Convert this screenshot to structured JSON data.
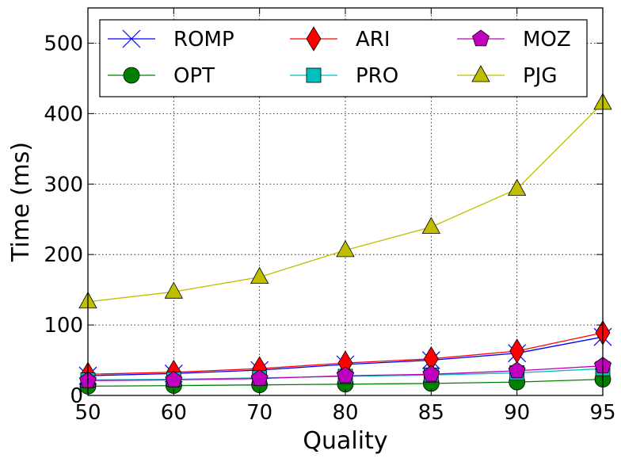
{
  "chart_data": {
    "type": "line",
    "title": "",
    "xlabel": "Quality",
    "ylabel": "Time (ms)",
    "categories": [
      "50",
      "60",
      "70",
      "80",
      "85",
      "90",
      "95"
    ],
    "ylim": [
      0,
      550
    ],
    "yticks": [
      "0",
      "100",
      "200",
      "300",
      "400",
      "500"
    ],
    "grid": true,
    "legend_position": "top",
    "series": [
      {
        "name": "ROMP",
        "marker": "x",
        "color": "#0000ff",
        "values": [
          28,
          31,
          36,
          44,
          50,
          60,
          83
        ]
      },
      {
        "name": "OPT",
        "marker": "circle",
        "color": "#008000",
        "values": [
          13,
          14,
          15,
          16,
          17,
          19,
          23
        ]
      },
      {
        "name": "ARI",
        "marker": "diamond",
        "color": "#ff0000",
        "values": [
          30,
          33,
          38,
          46,
          52,
          63,
          89
        ]
      },
      {
        "name": "PRO",
        "marker": "square",
        "color": "#00bfbf",
        "values": [
          22,
          23,
          25,
          27,
          29,
          32,
          38
        ]
      },
      {
        "name": "MOZ",
        "marker": "pentagon",
        "color": "#bf00bf",
        "values": [
          21,
          22,
          24,
          28,
          30,
          35,
          42
        ]
      },
      {
        "name": "PJG",
        "marker": "triangle",
        "color": "#bfbf00",
        "values": [
          133,
          147,
          168,
          206,
          239,
          293,
          415
        ]
      }
    ]
  }
}
